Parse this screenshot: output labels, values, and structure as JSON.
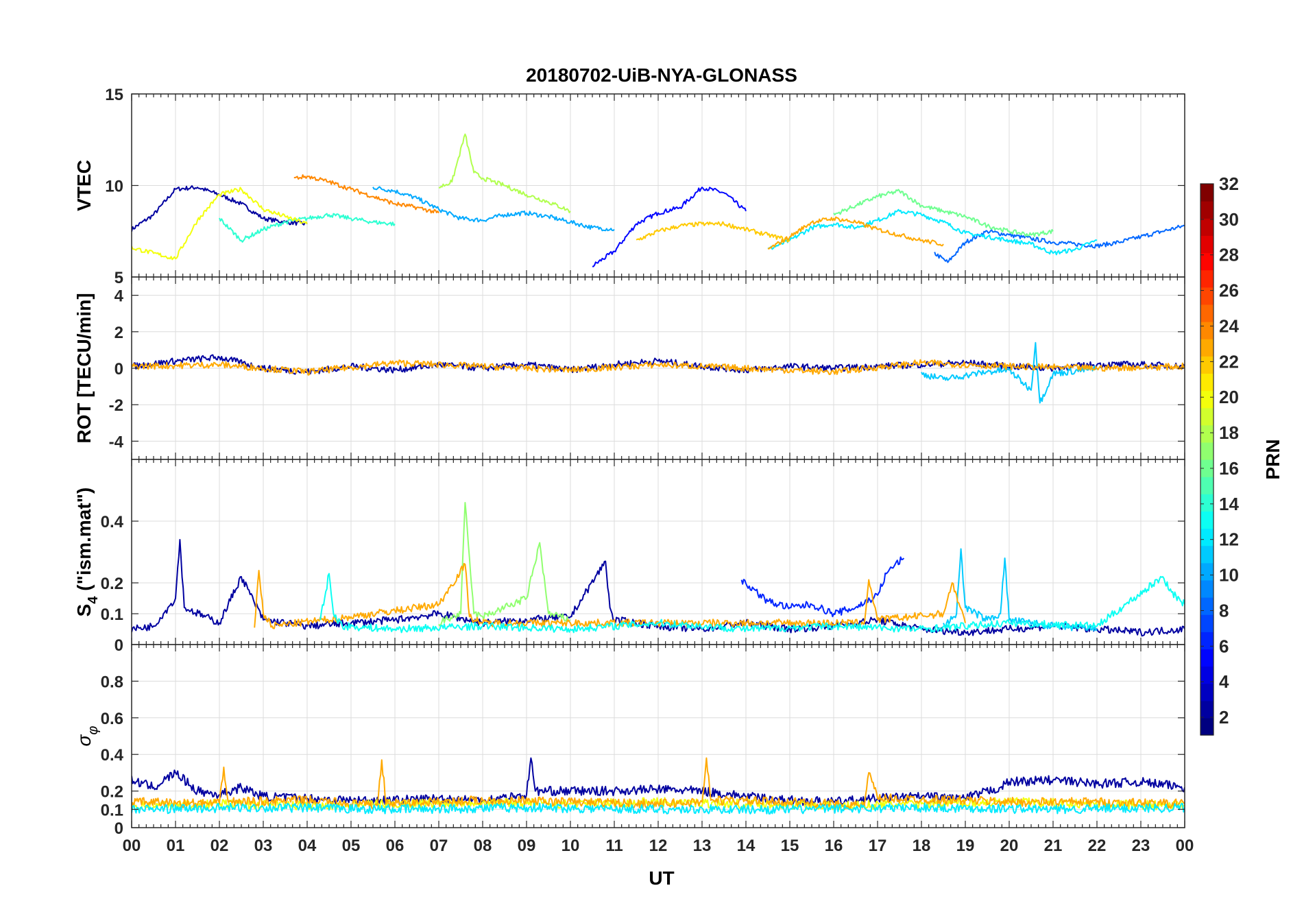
{
  "chart_data": {
    "type": "line",
    "title": "20180702-UiB-NYA-GLONASS",
    "xlabel": "UT",
    "x_tick_labels": [
      "00",
      "01",
      "02",
      "03",
      "04",
      "05",
      "06",
      "07",
      "08",
      "09",
      "10",
      "11",
      "12",
      "13",
      "14",
      "15",
      "16",
      "17",
      "18",
      "19",
      "20",
      "21",
      "22",
      "23",
      "00"
    ],
    "xlim": [
      0,
      24
    ],
    "grid": true,
    "colorbar": {
      "label": "PRN",
      "range": [
        1,
        32
      ],
      "tick_labels": [
        "2",
        "4",
        "6",
        "8",
        "10",
        "12",
        "14",
        "16",
        "18",
        "20",
        "22",
        "24",
        "26",
        "28",
        "30",
        "32"
      ],
      "colormap": "jet"
    },
    "panels": [
      {
        "ylabel": "VTEC",
        "ylim": [
          5,
          15
        ],
        "y_ticks": [
          5,
          10,
          15
        ],
        "series": [
          {
            "prn": 2,
            "x": [
              0,
              0.5,
              1,
              1.5,
              2,
              2.5,
              3,
              3.5,
              4
            ],
            "y": [
              7.6,
              8.4,
              9.8,
              9.9,
              9.5,
              9.0,
              8.2,
              8.0,
              7.9
            ]
          },
          {
            "prn": 5,
            "x": [
              10.5,
              11,
              11.5,
              12,
              12.5,
              13,
              13.5,
              14
            ],
            "y": [
              5.6,
              6.4,
              7.9,
              8.5,
              8.8,
              9.9,
              9.6,
              8.6
            ]
          },
          {
            "prn": 8,
            "x": [
              18.3,
              18.6,
              19,
              19.5,
              20,
              20.5,
              21,
              21.5,
              22,
              22.5,
              23,
              23.5,
              24
            ],
            "y": [
              6.3,
              5.8,
              6.9,
              7.5,
              7.3,
              7.1,
              6.9,
              6.8,
              6.7,
              6.9,
              7.2,
              7.5,
              7.8
            ]
          },
          {
            "prn": 10,
            "x": [
              5.5,
              6,
              6.5,
              7,
              7.5,
              8,
              8.5,
              9,
              9.5,
              10,
              10.5,
              11
            ],
            "y": [
              9.9,
              9.7,
              9.3,
              8.7,
              8.2,
              8.1,
              8.4,
              8.5,
              8.3,
              8.0,
              7.7,
              7.6
            ]
          },
          {
            "prn": 12,
            "x": [
              14.5,
              15,
              15.5,
              16,
              16.5,
              17,
              17.5,
              18,
              18.5,
              19,
              19.5,
              20,
              20.5,
              21,
              21.5,
              22
            ],
            "y": [
              6.5,
              7.0,
              7.7,
              7.9,
              7.7,
              8.1,
              8.6,
              8.4,
              8.0,
              7.4,
              7.2,
              7.0,
              6.8,
              6.3,
              6.5,
              7.0
            ]
          },
          {
            "prn": 14,
            "x": [
              2,
              2.5,
              3,
              3.5,
              4,
              4.5,
              5,
              5.5,
              6
            ],
            "y": [
              8.2,
              7.0,
              7.6,
              8.0,
              8.2,
              8.4,
              8.2,
              8.0,
              7.9
            ]
          },
          {
            "prn": 16,
            "x": [
              16,
              16.5,
              17,
              17.5,
              18,
              18.5,
              19,
              19.5,
              20,
              20.5,
              21
            ],
            "y": [
              8.4,
              8.9,
              9.4,
              9.7,
              8.9,
              8.6,
              8.3,
              7.8,
              7.5,
              7.3,
              7.5
            ]
          },
          {
            "prn": 18,
            "x": [
              7,
              7.3,
              7.6,
              7.8,
              8,
              8.5,
              9,
              9.5,
              10
            ],
            "y": [
              9.9,
              10.2,
              12.8,
              10.7,
              10.4,
              10.0,
              9.5,
              9.1,
              8.6
            ]
          },
          {
            "prn": 20,
            "x": [
              0,
              0.5,
              1,
              1.5,
              2,
              2.5,
              3,
              3.5,
              4
            ],
            "y": [
              6.6,
              6.3,
              6.0,
              8.1,
              9.5,
              9.8,
              8.7,
              8.3,
              7.9
            ]
          },
          {
            "prn": 22,
            "x": [
              11.5,
              12,
              12.5,
              13,
              13.5,
              14,
              14.5,
              15
            ],
            "y": [
              7.0,
              7.5,
              7.8,
              7.9,
              7.9,
              7.6,
              7.3,
              7.0
            ]
          },
          {
            "prn": 24,
            "x": [
              3.7,
              4,
              4.5,
              5,
              5.5,
              6,
              6.5,
              7
            ],
            "y": [
              10.4,
              10.5,
              10.2,
              9.8,
              9.4,
              9.0,
              8.8,
              8.5
            ]
          },
          {
            "prn": 23,
            "x": [
              14.5,
              15,
              15.5,
              16,
              16.5,
              17,
              17.5,
              18,
              18.5
            ],
            "y": [
              6.5,
              7.2,
              8.0,
              8.2,
              8.0,
              7.6,
              7.3,
              7.0,
              6.8
            ]
          }
        ]
      },
      {
        "ylabel": "ROT [TECU/min]",
        "ylim": [
          -5,
          5
        ],
        "y_ticks": [
          -4,
          -2,
          0,
          2,
          4
        ],
        "series": [
          {
            "prn": 2,
            "x": [
              0,
              1,
              2,
              3,
              4,
              5,
              6,
              7,
              8,
              9,
              10,
              11,
              12,
              13,
              14,
              15,
              16,
              17,
              18,
              19,
              20,
              21,
              22,
              23,
              24
            ],
            "y": [
              0.1,
              0.4,
              0.6,
              0.0,
              -0.2,
              0.1,
              -0.1,
              0.2,
              0.0,
              0.2,
              -0.1,
              0.2,
              0.4,
              0.1,
              -0.1,
              0.1,
              0.0,
              0.1,
              0.2,
              0.3,
              0.1,
              0.0,
              0.2,
              0.2,
              0.1
            ]
          },
          {
            "prn": 11,
            "x": [
              18,
              18.5,
              19,
              19.5,
              20,
              20.5,
              20.6,
              20.7,
              21,
              22
            ],
            "y": [
              -0.3,
              -0.6,
              -0.4,
              -0.2,
              -0.1,
              -1.2,
              1.4,
              -1.9,
              -0.3,
              0.0
            ]
          },
          {
            "prn": 23,
            "x": [
              0,
              2,
              4,
              6,
              8,
              10,
              12,
              14,
              16,
              18,
              20,
              22,
              24
            ],
            "y": [
              0.1,
              0.2,
              -0.2,
              0.3,
              0.1,
              -0.1,
              0.2,
              0.0,
              -0.2,
              0.3,
              0.1,
              0.0,
              0.1
            ]
          }
        ]
      },
      {
        "ylabel": "S4 (\"ism.mat\")",
        "ylabel_main": "S",
        "ylabel_sub": "4",
        "ylabel_rest": " (\"ism.mat\")",
        "ylim": [
          0,
          0.6
        ],
        "y_ticks": [
          0,
          0.1,
          0.2,
          0.4
        ],
        "series": [
          {
            "prn": 2,
            "x": [
              0,
              0.5,
              1,
              1.1,
              1.2,
              2,
              2.5,
              3,
              4,
              5,
              6,
              7,
              8,
              9,
              10,
              10.8,
              10.9,
              11,
              12,
              13,
              14,
              15,
              16,
              17,
              18,
              19,
              20,
              21,
              22,
              23,
              24
            ],
            "y": [
              0.05,
              0.06,
              0.15,
              0.34,
              0.12,
              0.07,
              0.22,
              0.08,
              0.06,
              0.07,
              0.08,
              0.1,
              0.07,
              0.08,
              0.09,
              0.27,
              0.12,
              0.08,
              0.06,
              0.05,
              0.07,
              0.05,
              0.06,
              0.08,
              0.05,
              0.04,
              0.05,
              0.06,
              0.05,
              0.04,
              0.05
            ]
          },
          {
            "prn": 6,
            "x": [
              13.9,
              14.5,
              15,
              15.5,
              16,
              16.5,
              17,
              17.2,
              17.4,
              17.6
            ],
            "y": [
              0.21,
              0.14,
              0.12,
              0.13,
              0.1,
              0.12,
              0.16,
              0.23,
              0.26,
              0.28
            ]
          },
          {
            "prn": 11,
            "x": [
              18.5,
              18.8,
              18.9,
              19,
              19.5,
              19.8,
              19.9,
              20,
              21,
              22
            ],
            "y": [
              0.06,
              0.1,
              0.31,
              0.12,
              0.08,
              0.1,
              0.28,
              0.08,
              0.06,
              0.05
            ]
          },
          {
            "prn": 17,
            "x": [
              7,
              7.5,
              7.6,
              7.7,
              7.8,
              8,
              8.5,
              9,
              9.3,
              9.5,
              10
            ],
            "y": [
              0.07,
              0.1,
              0.46,
              0.28,
              0.1,
              0.09,
              0.12,
              0.15,
              0.33,
              0.1,
              0.08
            ]
          },
          {
            "prn": 23,
            "x": [
              2.8,
              2.9,
              3,
              3.2,
              5,
              6,
              7,
              7.6,
              7.7,
              8,
              16.7,
              16.8,
              17,
              18.5,
              18.7,
              19
            ],
            "y": [
              0.06,
              0.24,
              0.1,
              0.06,
              0.09,
              0.11,
              0.13,
              0.26,
              0.09,
              0.07,
              0.07,
              0.21,
              0.08,
              0.1,
              0.2,
              0.07
            ]
          },
          {
            "prn": 13,
            "x": [
              4.3,
              4.5,
              4.6,
              4.8,
              6,
              8,
              10,
              12,
              14,
              16,
              18,
              20,
              22,
              23.5,
              23.7,
              24
            ],
            "y": [
              0.08,
              0.23,
              0.1,
              0.06,
              0.05,
              0.06,
              0.05,
              0.07,
              0.05,
              0.06,
              0.05,
              0.07,
              0.06,
              0.22,
              0.17,
              0.13
            ]
          }
        ]
      },
      {
        "ylabel": "σφ",
        "ylabel_main": "σ",
        "ylabel_sub": "φ",
        "ylim": [
          0,
          1
        ],
        "y_ticks": [
          0,
          0.1,
          0.2,
          0.4,
          0.6,
          0.8
        ],
        "series": [
          {
            "prn": 2,
            "x": [
              0,
              0.5,
              1,
              1.5,
              2,
              2.5,
              3,
              4,
              5,
              6,
              7,
              8,
              9,
              9.1,
              9.2,
              10,
              11,
              12,
              13,
              14,
              15,
              16,
              17,
              18,
              19,
              19.8,
              20,
              21,
              22,
              23,
              24
            ],
            "y": [
              0.26,
              0.22,
              0.3,
              0.2,
              0.18,
              0.22,
              0.17,
              0.16,
              0.15,
              0.15,
              0.16,
              0.15,
              0.18,
              0.38,
              0.2,
              0.2,
              0.2,
              0.21,
              0.2,
              0.17,
              0.15,
              0.14,
              0.16,
              0.17,
              0.16,
              0.22,
              0.25,
              0.26,
              0.24,
              0.25,
              0.22
            ]
          },
          {
            "prn": 20,
            "x": [
              0,
              2,
              4,
              6,
              8,
              10,
              12,
              14,
              16,
              18,
              20,
              22,
              24
            ],
            "y": [
              0.12,
              0.13,
              0.12,
              0.13,
              0.14,
              0.13,
              0.14,
              0.13,
              0.12,
              0.13,
              0.14,
              0.13,
              0.12
            ]
          },
          {
            "prn": 23,
            "x": [
              0,
              2,
              2.1,
              2.2,
              4,
              5.6,
              5.7,
              5.8,
              8,
              10,
              12,
              13,
              13.1,
              13.2,
              15,
              16.7,
              16.8,
              17,
              19,
              20,
              22,
              24
            ],
            "y": [
              0.14,
              0.13,
              0.33,
              0.14,
              0.15,
              0.12,
              0.37,
              0.13,
              0.15,
              0.14,
              0.13,
              0.14,
              0.38,
              0.15,
              0.14,
              0.12,
              0.3,
              0.16,
              0.15,
              0.14,
              0.14,
              0.13
            ]
          },
          {
            "prn": 12,
            "x": [
              0,
              3,
              6,
              9,
              12,
              15,
              18,
              21,
              24
            ],
            "y": [
              0.1,
              0.11,
              0.1,
              0.11,
              0.1,
              0.1,
              0.11,
              0.1,
              0.11
            ]
          }
        ]
      }
    ]
  }
}
